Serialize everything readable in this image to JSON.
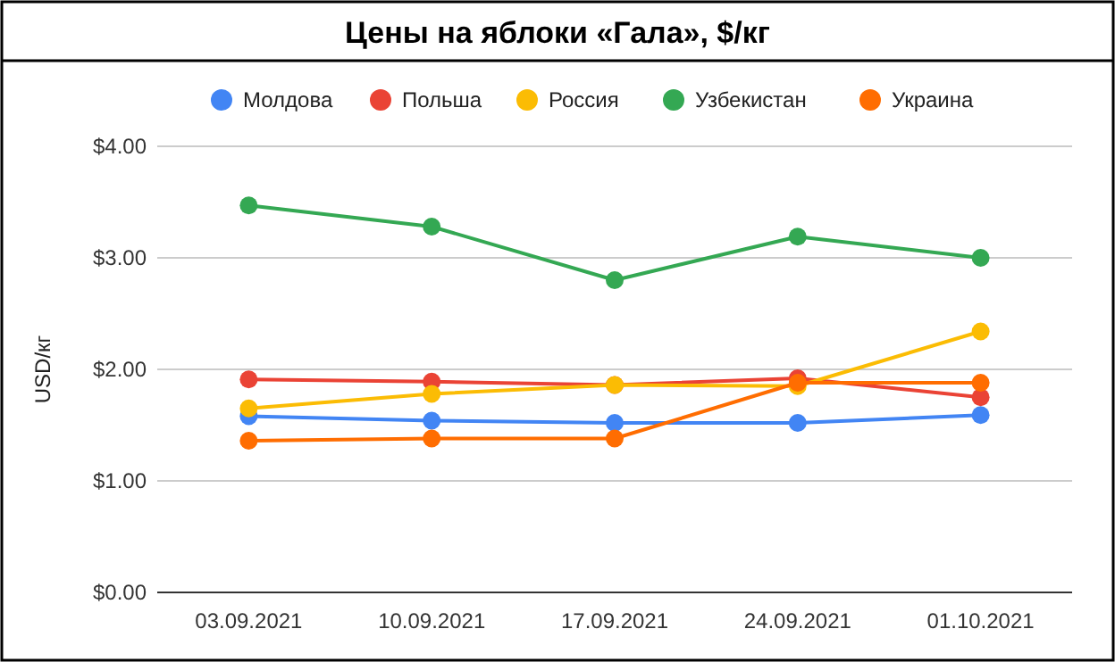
{
  "chart_data": {
    "type": "line",
    "title": "Цены на яблоки «Гала», $/кг",
    "ylabel": "USD/кг",
    "categories": [
      "03.09.2021",
      "10.09.2021",
      "17.09.2021",
      "24.09.2021",
      "01.10.2021"
    ],
    "series": [
      {
        "name": "Молдова",
        "color": "#4285f4",
        "values": [
          1.58,
          1.54,
          1.52,
          1.52,
          1.59
        ]
      },
      {
        "name": "Польша",
        "color": "#ea4335",
        "values": [
          1.91,
          1.89,
          1.86,
          1.92,
          1.75
        ]
      },
      {
        "name": "Россия",
        "color": "#fbbc04",
        "values": [
          1.65,
          1.78,
          1.86,
          1.85,
          2.34
        ]
      },
      {
        "name": "Узбекистан",
        "color": "#34a853",
        "values": [
          3.47,
          3.28,
          2.8,
          3.19,
          3.0
        ]
      },
      {
        "name": "Украина",
        "color": "#ff6d01",
        "values": [
          1.36,
          1.38,
          1.38,
          1.88,
          1.88
        ]
      }
    ],
    "ylim": [
      0,
      4
    ],
    "yticks": [
      {
        "value": 0,
        "label": "$0.00"
      },
      {
        "value": 1,
        "label": "$1.00"
      },
      {
        "value": 2,
        "label": "$2.00"
      },
      {
        "value": 3,
        "label": "$3.00"
      },
      {
        "value": 4,
        "label": "$4.00"
      }
    ],
    "grid": "y",
    "legend": "top",
    "marker": "circle",
    "line_style": "solid"
  }
}
